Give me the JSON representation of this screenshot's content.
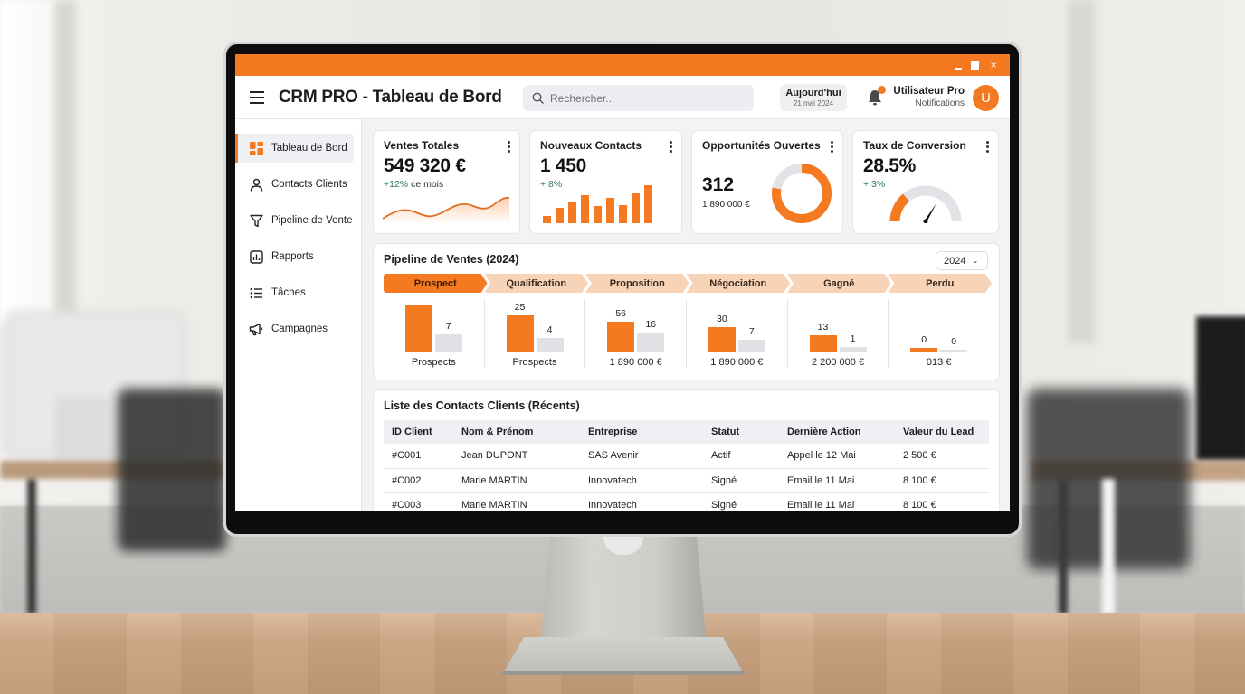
{
  "window": {
    "title_bar_color": "#f47920",
    "controls": {
      "minimize": "minimize",
      "maximize": "maximize",
      "close": "×"
    }
  },
  "header": {
    "title": "CRM PRO - Tableau de Bord",
    "search": {
      "placeholder": "Rechercher...",
      "value": ""
    },
    "date": {
      "label": "Aujourd'hui",
      "value": "21 mai 2024"
    },
    "user": {
      "name": "Utilisateur Pro",
      "subtitle": "Notifications",
      "avatar_initial": "U"
    }
  },
  "sidebar": {
    "items": [
      {
        "label": "Tableau de Bord",
        "icon": "dashboard-icon",
        "active": true
      },
      {
        "label": "Contacts Clients",
        "icon": "user-icon",
        "active": false
      },
      {
        "label": "Pipeline de Vente",
        "icon": "filter-icon",
        "active": false
      },
      {
        "label": "Rapports",
        "icon": "bar-chart-icon",
        "active": false
      },
      {
        "label": "Tâches",
        "icon": "list-icon",
        "active": false
      },
      {
        "label": "Campagnes",
        "icon": "megaphone-icon",
        "active": false
      }
    ]
  },
  "kpis": {
    "sales": {
      "title": "Ventes Totales",
      "value": "549 320 €",
      "delta": "+12%",
      "delta_suffix": " ce mois"
    },
    "contacts": {
      "title": "Nouveaux Contacts",
      "value": "1 450",
      "delta": "+ 8%",
      "bars": [
        8,
        17,
        24,
        31,
        19,
        28,
        20,
        33,
        42
      ]
    },
    "opportunities": {
      "title": "Opportunités Ouvertes",
      "value": "312",
      "amount": "1 890 000 €",
      "donut_percent": 78
    },
    "conversion": {
      "title": "Taux de Conversion",
      "value": "28.5%",
      "delta": "+ 3%",
      "gauge_percent": 28.5
    }
  },
  "pipeline": {
    "title": "Pipeline de Ventes (2024)",
    "year_selected": "2024",
    "stages": [
      {
        "label": "Prospect",
        "primary": "",
        "secondary": "7",
        "primary_h": 52,
        "secondary_h": 19,
        "footer": "Prospects"
      },
      {
        "label": "Qualification",
        "primary": "25",
        "secondary": "4",
        "primary_h": 40,
        "secondary_h": 15,
        "footer": "Prospects"
      },
      {
        "label": "Proposition",
        "primary": "56",
        "secondary": "16",
        "primary_h": 33,
        "secondary_h": 21,
        "footer": "1 890 000 €"
      },
      {
        "label": "Négociation",
        "primary": "30",
        "secondary": "7",
        "primary_h": 27,
        "secondary_h": 13,
        "footer": "1 890 000 €"
      },
      {
        "label": "Gagné",
        "primary": "13",
        "secondary": "1",
        "primary_h": 18,
        "secondary_h": 5,
        "footer": "2 200 000 €"
      },
      {
        "label": "Perdu",
        "primary": "0",
        "secondary": "0",
        "primary_h": 4,
        "secondary_h": 2,
        "footer": "013 €"
      }
    ]
  },
  "contacts_table": {
    "title": "Liste des Contacts Clients (Récents)",
    "columns": [
      "ID Client",
      "Nom & Prénom",
      "Entreprise",
      "Statut",
      "Dernière Action",
      "Valeur du Lead"
    ],
    "rows": [
      [
        "#C001",
        "Jean DUPONT",
        "SAS Avenir",
        "Actif",
        "Appel le 12 Mai",
        "2 500 €"
      ],
      [
        "#C002",
        "Marie MARTIN",
        "Innovatech",
        "Signé",
        "Email le 11 Mai",
        "8 100 €"
      ],
      [
        "#C003",
        "Marie MARTIN",
        "Innovatech",
        "Signé",
        "Email le 11 Mai",
        "8 100 €"
      ]
    ]
  },
  "colors": {
    "accent": "#f47920",
    "positive": "#2e7d4f",
    "neutral_bar": "#dfe1e4"
  }
}
